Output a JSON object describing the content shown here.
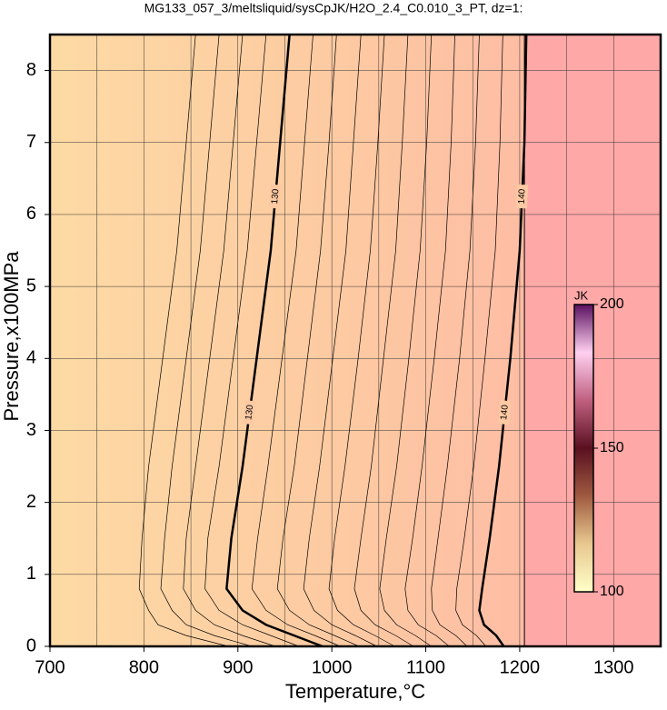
{
  "chart_data": {
    "type": "contour",
    "title": "MG133_057_3/meltsliquid/sysCpJK/H2O_2.4_C0.010_3_PT, dz=1:",
    "x_label": "Temperature,°C",
    "y_label": "Pressure,x100MPa",
    "xlim": [
      700,
      1350
    ],
    "ylim": [
      0,
      8.5
    ],
    "xticks": [
      700,
      800,
      900,
      1000,
      1100,
      1200,
      1300
    ],
    "yticks": [
      0,
      1,
      2,
      3,
      4,
      5,
      6,
      7,
      8
    ],
    "xminor": [
      750,
      850,
      950,
      1050,
      1150,
      1250
    ],
    "grid": true,
    "background_colors": [
      "#fddaa4",
      "#fdc9a2",
      "#feb3a6"
    ],
    "boundary": {
      "x": 1205,
      "color": "#ffa8a8"
    },
    "contour_y": [
      0,
      0.15,
      0.3,
      0.5,
      0.8,
      1.5,
      2.5,
      4,
      5.5,
      7,
      8.5
    ],
    "contours": [
      {
        "level": 126,
        "x": [
          890,
          845,
          815,
          805,
          795,
          798,
          805,
          820,
          835,
          845,
          855
        ]
      },
      {
        "level": 127,
        "x": [
          915,
          875,
          845,
          830,
          818,
          822,
          830,
          845,
          860,
          870,
          880
        ]
      },
      {
        "level": 128,
        "x": [
          940,
          905,
          875,
          855,
          842,
          845,
          855,
          870,
          885,
          895,
          905
        ]
      },
      {
        "level": 129,
        "x": [
          965,
          935,
          905,
          880,
          865,
          868,
          880,
          895,
          910,
          920,
          930
        ]
      },
      {
        "level": 130,
        "labeled": true,
        "x": [
          990,
          960,
          930,
          905,
          888,
          893,
          905,
          920,
          935,
          945,
          955
        ]
      },
      {
        "level": 131,
        "x": [
          1009,
          982,
          953,
          930,
          915,
          921,
          932,
          947,
          962,
          971,
          980
        ]
      },
      {
        "level": 132,
        "x": [
          1029,
          1003,
          976,
          955,
          942,
          948,
          960,
          974,
          988,
          997,
          1005
        ]
      },
      {
        "level": 133,
        "x": [
          1048,
          1025,
          1000,
          981,
          970,
          976,
          987,
          1001,
          1015,
          1023,
          1031
        ]
      },
      {
        "level": 134,
        "x": [
          1067,
          1046,
          1023,
          1006,
          997,
          1003,
          1014,
          1028,
          1041,
          1049,
          1056
        ]
      },
      {
        "level": 135,
        "x": [
          1087,
          1068,
          1046,
          1031,
          1024,
          1031,
          1042,
          1055,
          1068,
          1075,
          1081
        ]
      },
      {
        "level": 136,
        "x": [
          1106,
          1089,
          1069,
          1056,
          1051,
          1058,
          1069,
          1082,
          1094,
          1101,
          1106
        ]
      },
      {
        "level": 137,
        "x": [
          1125,
          1111,
          1092,
          1081,
          1078,
          1086,
          1096,
          1109,
          1121,
          1127,
          1131
        ]
      },
      {
        "level": 138,
        "x": [
          1144,
          1132,
          1115,
          1107,
          1106,
          1113,
          1123,
          1136,
          1147,
          1153,
          1157
        ]
      },
      {
        "level": 139,
        "x": [
          1164,
          1154,
          1139,
          1132,
          1133,
          1141,
          1151,
          1163,
          1174,
          1179,
          1182
        ]
      },
      {
        "level": 140,
        "labeled": true,
        "x": [
          1183,
          1175,
          1162,
          1157,
          1160,
          1168,
          1178,
          1190,
          1200,
          1205,
          1207
        ]
      }
    ],
    "colorbar": {
      "label": "JK",
      "lim": [
        100,
        200
      ],
      "ticks": [
        100,
        150,
        200
      ],
      "colors": [
        "#ffffc8",
        "#e8c890",
        "#a05a40",
        "#5a1020",
        "#c06080",
        "#ffd0f0",
        "#5a1060"
      ]
    }
  }
}
